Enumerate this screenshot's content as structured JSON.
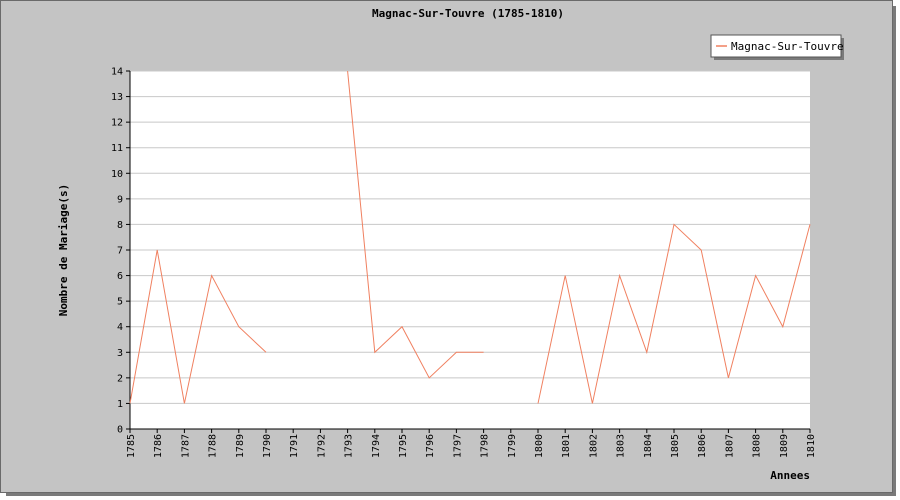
{
  "chart_data": {
    "type": "line",
    "title": "Magnac-Sur-Touvre (1785-1810)",
    "xlabel": "Annees",
    "ylabel": "Nombre de Mariage(s)",
    "x": [
      1785,
      1786,
      1787,
      1788,
      1789,
      1790,
      1791,
      1792,
      1793,
      1794,
      1795,
      1796,
      1797,
      1798,
      1799,
      1800,
      1801,
      1802,
      1803,
      1804,
      1805,
      1806,
      1807,
      1808,
      1809,
      1810
    ],
    "series": [
      {
        "name": "Magnac-Sur-Touvre",
        "color": "#f08060",
        "values": [
          1,
          7,
          1,
          6,
          4,
          3,
          null,
          null,
          14,
          3,
          4,
          2,
          3,
          3,
          null,
          1,
          6,
          1,
          6,
          3,
          8,
          7,
          2,
          6,
          4,
          8
        ]
      }
    ],
    "ylim": [
      0,
      14
    ],
    "yticks": [
      0,
      1,
      2,
      3,
      4,
      5,
      6,
      7,
      8,
      9,
      10,
      11,
      12,
      13,
      14
    ],
    "grid": true,
    "legend": "top-right"
  }
}
